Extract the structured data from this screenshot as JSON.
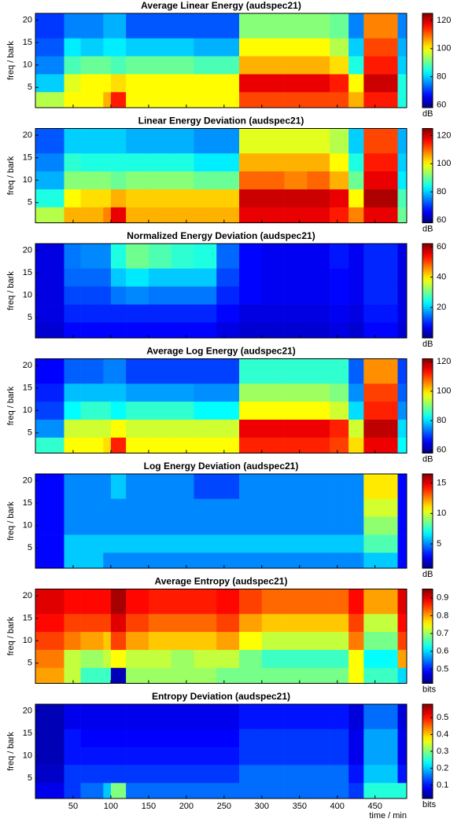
{
  "chart_data": [
    {
      "type": "heatmap",
      "title": "Average Linear Energy (audspec21)",
      "ylabel": "freq / bark",
      "colorbar_label": "dB",
      "colormap": "jet",
      "xlim": [
        0,
        492
      ],
      "xticks": [
        50,
        100,
        150,
        200,
        250,
        300,
        350,
        400,
        450
      ],
      "xticklabels": false,
      "ylim": [
        0.5,
        21.5
      ],
      "yticks": [
        5,
        10,
        15,
        20
      ],
      "clim": [
        58,
        125
      ],
      "cticks": [
        60,
        80,
        100,
        120
      ],
      "x_edges": [
        0,
        38,
        60,
        90,
        100,
        120,
        150,
        180,
        210,
        240,
        270,
        300,
        330,
        360,
        390,
        415,
        435,
        460,
        480,
        492
      ],
      "y_edges": [
        0.5,
        4,
        8,
        12,
        16,
        21.5
      ],
      "values": [
        [
          95,
          100,
          100,
          105,
          115,
          100,
          100,
          100,
          100,
          100,
          112,
          112,
          112,
          112,
          112,
          105,
          115,
          115,
          85
        ],
        [
          80,
          98,
          100,
          100,
          102,
          100,
          100,
          100,
          100,
          100,
          118,
          118,
          118,
          118,
          115,
          100,
          120,
          120,
          85
        ],
        [
          75,
          88,
          90,
          90,
          88,
          90,
          90,
          90,
          88,
          88,
          105,
          105,
          105,
          105,
          102,
          85,
          115,
          115,
          80
        ],
        [
          72,
          82,
          80,
          82,
          82,
          80,
          80,
          80,
          78,
          78,
          100,
          100,
          100,
          100,
          95,
          80,
          112,
          112,
          78
        ],
        [
          70,
          75,
          75,
          78,
          78,
          72,
          72,
          72,
          72,
          72,
          92,
          92,
          92,
          92,
          90,
          75,
          108,
          108,
          75
        ]
      ]
    },
    {
      "type": "heatmap",
      "title": "Linear Energy Deviation (audspec21)",
      "ylabel": "freq / bark",
      "colorbar_label": "dB",
      "colormap": "jet",
      "xlim": [
        0,
        492
      ],
      "xticks": [
        50,
        100,
        150,
        200,
        250,
        300,
        350,
        400,
        450
      ],
      "xticklabels": false,
      "ylim": [
        0.5,
        21.5
      ],
      "yticks": [
        5,
        10,
        15,
        20
      ],
      "clim": [
        58,
        125
      ],
      "cticks": [
        60,
        80,
        100,
        120
      ],
      "x_edges": [
        0,
        38,
        60,
        90,
        100,
        120,
        150,
        180,
        210,
        240,
        270,
        300,
        330,
        360,
        390,
        415,
        435,
        460,
        480,
        492
      ],
      "y_edges": [
        0.5,
        4,
        8,
        12,
        16,
        21.5
      ],
      "values": [
        [
          95,
          105,
          105,
          108,
          118,
          105,
          105,
          105,
          105,
          105,
          118,
          118,
          118,
          118,
          115,
          108,
          118,
          118,
          90
        ],
        [
          85,
          100,
          102,
          102,
          105,
          103,
          103,
          103,
          103,
          103,
          120,
          120,
          120,
          120,
          118,
          100,
          122,
          122,
          88
        ],
        [
          78,
          92,
          92,
          92,
          90,
          92,
          92,
          92,
          90,
          90,
          110,
          110,
          108,
          110,
          105,
          90,
          118,
          118,
          82
        ],
        [
          75,
          86,
          85,
          85,
          85,
          85,
          85,
          85,
          82,
          82,
          105,
          105,
          105,
          105,
          100,
          85,
          115,
          115,
          80
        ],
        [
          72,
          80,
          80,
          80,
          80,
          78,
          78,
          78,
          76,
          76,
          98,
          98,
          98,
          98,
          95,
          80,
          112,
          112,
          78
        ]
      ]
    },
    {
      "type": "heatmap",
      "title": "Normalized Energy Deviation (audspec21)",
      "ylabel": "freq / bark",
      "colorbar_label": "dB",
      "colormap": "jet",
      "xlim": [
        0,
        492
      ],
      "xticks": [
        50,
        100,
        150,
        200,
        250,
        300,
        350,
        400,
        450
      ],
      "xticklabels": false,
      "ylim": [
        0.5,
        21.5
      ],
      "yticks": [
        5,
        10,
        15,
        20
      ],
      "clim": [
        0,
        62
      ],
      "cticks": [
        20,
        40,
        60
      ],
      "x_edges": [
        0,
        38,
        60,
        90,
        100,
        120,
        150,
        180,
        210,
        240,
        270,
        300,
        330,
        360,
        390,
        415,
        435,
        460,
        480,
        492
      ],
      "y_edges": [
        0.5,
        4,
        8,
        12,
        16,
        21.5
      ],
      "values": [
        [
          5,
          8,
          8,
          8,
          8,
          8,
          8,
          8,
          8,
          6,
          5,
          5,
          5,
          5,
          6,
          5,
          8,
          8,
          5
        ],
        [
          6,
          10,
          10,
          10,
          10,
          10,
          10,
          10,
          10,
          8,
          6,
          6,
          6,
          6,
          7,
          6,
          9,
          9,
          6
        ],
        [
          6,
          12,
          12,
          12,
          15,
          16,
          15,
          15,
          15,
          10,
          8,
          7,
          7,
          7,
          8,
          7,
          10,
          10,
          6
        ],
        [
          6,
          14,
          14,
          14,
          20,
          22,
          20,
          20,
          20,
          12,
          8,
          7,
          7,
          7,
          8,
          7,
          10,
          10,
          6
        ],
        [
          6,
          15,
          16,
          16,
          25,
          30,
          28,
          26,
          25,
          14,
          8,
          7,
          7,
          7,
          9,
          7,
          10,
          10,
          6
        ]
      ]
    },
    {
      "type": "heatmap",
      "title": "Average Log Energy (audspec21)",
      "ylabel": "freq / bark",
      "colorbar_label": "dB",
      "colormap": "jet",
      "xlim": [
        0,
        492
      ],
      "xticks": [
        50,
        100,
        150,
        200,
        250,
        300,
        350,
        400,
        450
      ],
      "xticklabels": false,
      "ylim": [
        0.5,
        21.5
      ],
      "yticks": [
        5,
        10,
        15,
        20
      ],
      "clim": [
        58,
        122
      ],
      "cticks": [
        60,
        80,
        100,
        120
      ],
      "x_edges": [
        0,
        38,
        60,
        90,
        100,
        120,
        150,
        180,
        210,
        240,
        270,
        300,
        330,
        360,
        390,
        415,
        435,
        460,
        480,
        492
      ],
      "y_edges": [
        0.5,
        4,
        8,
        12,
        16,
        21.5
      ],
      "values": [
        [
          85,
          98,
          98,
          100,
          112,
          98,
          98,
          98,
          98,
          98,
          112,
          112,
          112,
          112,
          110,
          100,
          115,
          115,
          82
        ],
        [
          75,
          95,
          95,
          95,
          98,
          95,
          95,
          95,
          95,
          95,
          115,
          115,
          115,
          115,
          112,
          95,
          118,
          118,
          80
        ],
        [
          70,
          82,
          85,
          85,
          82,
          85,
          85,
          85,
          82,
          82,
          98,
          98,
          98,
          98,
          95,
          80,
          112,
          112,
          75
        ],
        [
          68,
          78,
          78,
          78,
          78,
          76,
          76,
          76,
          75,
          75,
          92,
          92,
          92,
          92,
          90,
          75,
          110,
          110,
          72
        ],
        [
          66,
          72,
          72,
          74,
          74,
          70,
          70,
          70,
          70,
          70,
          85,
          85,
          85,
          85,
          85,
          72,
          105,
          105,
          70
        ]
      ]
    },
    {
      "type": "heatmap",
      "title": "Log Energy Deviation (audspec21)",
      "ylabel": "freq / bark",
      "colorbar_label": "dB",
      "colormap": "jet",
      "xlim": [
        0,
        492
      ],
      "xticks": [
        50,
        100,
        150,
        200,
        250,
        300,
        350,
        400,
        450
      ],
      "xticklabels": false,
      "ylim": [
        0.5,
        21.5
      ],
      "yticks": [
        5,
        10,
        15,
        20
      ],
      "clim": [
        1,
        16.5
      ],
      "cticks": [
        5,
        10,
        15
      ],
      "x_edges": [
        0,
        38,
        60,
        90,
        100,
        120,
        150,
        180,
        210,
        240,
        270,
        300,
        330,
        360,
        390,
        415,
        435,
        460,
        480,
        492
      ],
      "y_edges": [
        0.5,
        4,
        8,
        12,
        16,
        21.5
      ],
      "values": [
        [
          3,
          6,
          6,
          5,
          5,
          5,
          5,
          5,
          5,
          5,
          5,
          5,
          5,
          5,
          5,
          5,
          6,
          6,
          3
        ],
        [
          3,
          6,
          6,
          6,
          6,
          6,
          6,
          6,
          6,
          6,
          6,
          6,
          6,
          6,
          6,
          6,
          8,
          8,
          3
        ],
        [
          3,
          5,
          5,
          5,
          5,
          5,
          5,
          5,
          5,
          5,
          5,
          5,
          5,
          5,
          5,
          5,
          9,
          9,
          3
        ],
        [
          3,
          5,
          5,
          5,
          5,
          5,
          5,
          5,
          5,
          5,
          5,
          5,
          5,
          5,
          5,
          5,
          10,
          10,
          3
        ],
        [
          3,
          5,
          5,
          5,
          6,
          5,
          5,
          5,
          4,
          4,
          5,
          5,
          5,
          5,
          5,
          5,
          11,
          11,
          3
        ]
      ]
    },
    {
      "type": "heatmap",
      "title": "Average Entropy (audspec21)",
      "ylabel": "freq / bark",
      "colorbar_label": "bits",
      "colormap": "jet",
      "xlim": [
        0,
        492
      ],
      "xticks": [
        50,
        100,
        150,
        200,
        250,
        300,
        350,
        400,
        450
      ],
      "xticklabels": false,
      "ylim": [
        0.5,
        21.5
      ],
      "yticks": [
        5,
        10,
        15,
        20
      ],
      "clim": [
        0.42,
        0.95
      ],
      "cticks": [
        0.5,
        0.6,
        0.7,
        0.8,
        0.9
      ],
      "x_edges": [
        0,
        38,
        60,
        90,
        100,
        120,
        150,
        180,
        210,
        240,
        270,
        300,
        330,
        360,
        390,
        415,
        435,
        460,
        480,
        492
      ],
      "y_edges": [
        0.5,
        4,
        8,
        12,
        16,
        21.5
      ],
      "values": [
        [
          0.8,
          0.72,
          0.65,
          0.65,
          0.45,
          0.7,
          0.7,
          0.7,
          0.7,
          0.68,
          0.68,
          0.68,
          0.68,
          0.68,
          0.68,
          0.75,
          0.65,
          0.65,
          0.6
        ],
        [
          0.82,
          0.72,
          0.7,
          0.72,
          0.75,
          0.72,
          0.72,
          0.7,
          0.72,
          0.72,
          0.68,
          0.65,
          0.65,
          0.65,
          0.65,
          0.75,
          0.62,
          0.62,
          0.8
        ],
        [
          0.85,
          0.82,
          0.8,
          0.78,
          0.85,
          0.8,
          0.78,
          0.78,
          0.78,
          0.8,
          0.75,
          0.72,
          0.72,
          0.72,
          0.72,
          0.82,
          0.68,
          0.68,
          0.85
        ],
        [
          0.88,
          0.85,
          0.85,
          0.85,
          0.9,
          0.85,
          0.83,
          0.83,
          0.83,
          0.85,
          0.8,
          0.78,
          0.78,
          0.78,
          0.78,
          0.85,
          0.72,
          0.72,
          0.88
        ],
        [
          0.9,
          0.88,
          0.88,
          0.88,
          0.93,
          0.88,
          0.87,
          0.87,
          0.87,
          0.88,
          0.85,
          0.83,
          0.83,
          0.83,
          0.83,
          0.88,
          0.8,
          0.8,
          0.9
        ]
      ]
    },
    {
      "type": "heatmap",
      "title": "Entropy Deviation (audspec21)",
      "ylabel": "freq / bark",
      "xlabel": "time / min",
      "colorbar_label": "bits",
      "colormap": "jet",
      "xlim": [
        0,
        492
      ],
      "xticks": [
        50,
        100,
        150,
        200,
        250,
        300,
        350,
        400,
        450
      ],
      "xticklabels": true,
      "ylim": [
        0.5,
        21.5
      ],
      "yticks": [
        5,
        10,
        15,
        20
      ],
      "clim": [
        0.02,
        0.58
      ],
      "cticks": [
        0.1,
        0.2,
        0.3,
        0.4,
        0.5
      ],
      "x_edges": [
        0,
        38,
        60,
        90,
        100,
        120,
        150,
        180,
        210,
        240,
        270,
        300,
        330,
        360,
        390,
        415,
        435,
        460,
        480,
        492
      ],
      "y_edges": [
        0.5,
        4,
        8,
        12,
        16,
        21.5
      ],
      "values": [
        [
          0.08,
          0.12,
          0.15,
          0.2,
          0.3,
          0.15,
          0.15,
          0.15,
          0.15,
          0.15,
          0.15,
          0.15,
          0.15,
          0.15,
          0.15,
          0.12,
          0.25,
          0.25,
          0.25
        ],
        [
          0.06,
          0.12,
          0.12,
          0.12,
          0.12,
          0.12,
          0.12,
          0.12,
          0.12,
          0.12,
          0.15,
          0.15,
          0.15,
          0.15,
          0.15,
          0.1,
          0.2,
          0.2,
          0.1
        ],
        [
          0.05,
          0.1,
          0.1,
          0.1,
          0.1,
          0.1,
          0.1,
          0.1,
          0.1,
          0.1,
          0.12,
          0.12,
          0.12,
          0.12,
          0.12,
          0.08,
          0.18,
          0.18,
          0.08
        ],
        [
          0.05,
          0.1,
          0.09,
          0.09,
          0.09,
          0.09,
          0.09,
          0.09,
          0.09,
          0.09,
          0.12,
          0.12,
          0.12,
          0.12,
          0.12,
          0.08,
          0.18,
          0.18,
          0.08
        ],
        [
          0.05,
          0.08,
          0.08,
          0.08,
          0.08,
          0.08,
          0.08,
          0.08,
          0.08,
          0.08,
          0.1,
          0.1,
          0.1,
          0.1,
          0.1,
          0.07,
          0.15,
          0.15,
          0.07
        ]
      ]
    }
  ]
}
